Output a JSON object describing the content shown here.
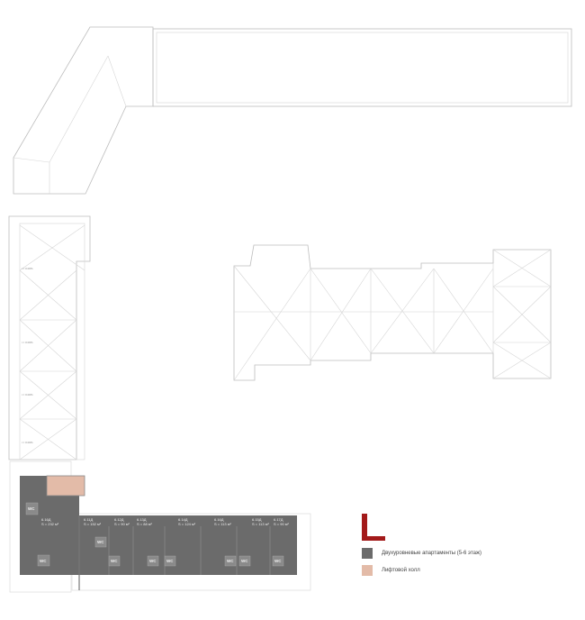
{
  "legend": {
    "items": [
      {
        "label": "Двухуровневые апартаменты (5-6 этаж)",
        "color": "#6b6b6b"
      },
      {
        "label": "Лифтовой холл",
        "color": "#e3bba8"
      }
    ],
    "key_plan_color": "#a31a1a"
  },
  "plan": {
    "units": [
      {
        "id": "6.16Д",
        "area": "S = 232 м²"
      },
      {
        "id": "6.11Д",
        "area": "S = 152 м²"
      },
      {
        "id": "6.12Д",
        "area": "S = 90 м²"
      },
      {
        "id": "6.13Д",
        "area": "S = 88 м²"
      },
      {
        "id": "6.14Д",
        "area": "S = 124 м²"
      },
      {
        "id": "6.16Д",
        "area": "S = 113 м²"
      },
      {
        "id": "6.15Д",
        "area": "S = 113 м²"
      },
      {
        "id": "6.17Д",
        "area": "S = 90 м²"
      }
    ],
    "wc_label": "WC",
    "roof_level": "i = 0.00%"
  }
}
